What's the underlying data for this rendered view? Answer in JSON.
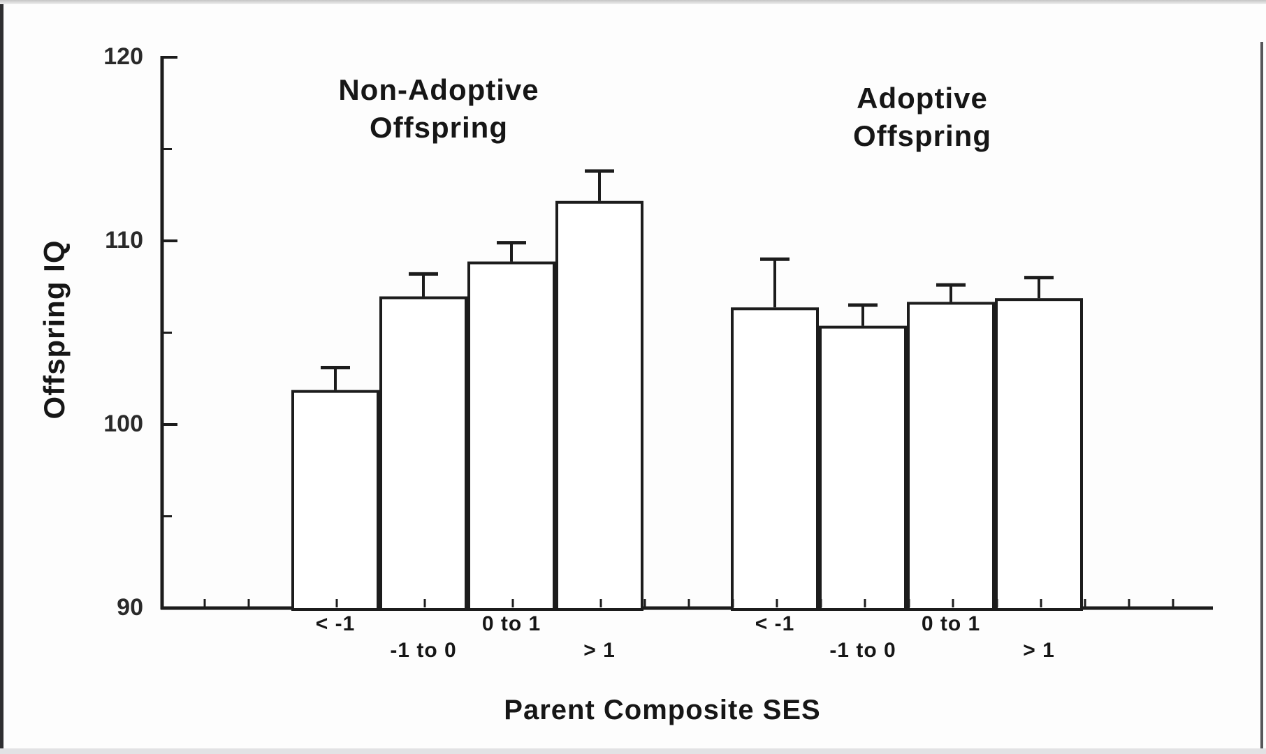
{
  "chart_data": {
    "type": "bar",
    "title": "",
    "xlabel": "Parent Composite SES",
    "ylabel": "Offspring IQ",
    "ylim": [
      90,
      120
    ],
    "yticks_major": [
      90,
      100,
      110,
      120
    ],
    "yticks_minor": [
      95,
      105,
      115
    ],
    "ytick_labels": [
      "90",
      "100",
      "110",
      "120"
    ],
    "grid": false,
    "legend": "none",
    "background": "#fdfdfd",
    "stroke_color": "#1c1c1c",
    "bar_fill": "#ffffff",
    "error_bar_style": "upper whisker with cap",
    "categories": [
      "< -1",
      "-1 to 0",
      "0 to 1",
      "> 1"
    ],
    "groups": [
      {
        "label": "Non-Adoptive Offspring",
        "label_lines": [
          "Non-Adoptive",
          "Offspring"
        ],
        "bars": [
          {
            "category": "< -1",
            "value": 101.8,
            "error_plus": 1.3
          },
          {
            "category": "-1 to 0",
            "value": 106.9,
            "error_plus": 1.3
          },
          {
            "category": "0 to 1",
            "value": 108.8,
            "error_plus": 1.1
          },
          {
            "category": "> 1",
            "value": 112.1,
            "error_plus": 1.7
          }
        ]
      },
      {
        "label": "Adoptive Offspring",
        "label_lines": [
          "Adoptive",
          "Offspring"
        ],
        "bars": [
          {
            "category": "< -1",
            "value": 106.3,
            "error_plus": 2.7
          },
          {
            "category": "-1 to 0",
            "value": 105.3,
            "error_plus": 1.2
          },
          {
            "category": "0 to 1",
            "value": 106.6,
            "error_plus": 1.0
          },
          {
            "category": "> 1",
            "value": 106.8,
            "error_plus": 1.2
          }
        ]
      }
    ]
  }
}
